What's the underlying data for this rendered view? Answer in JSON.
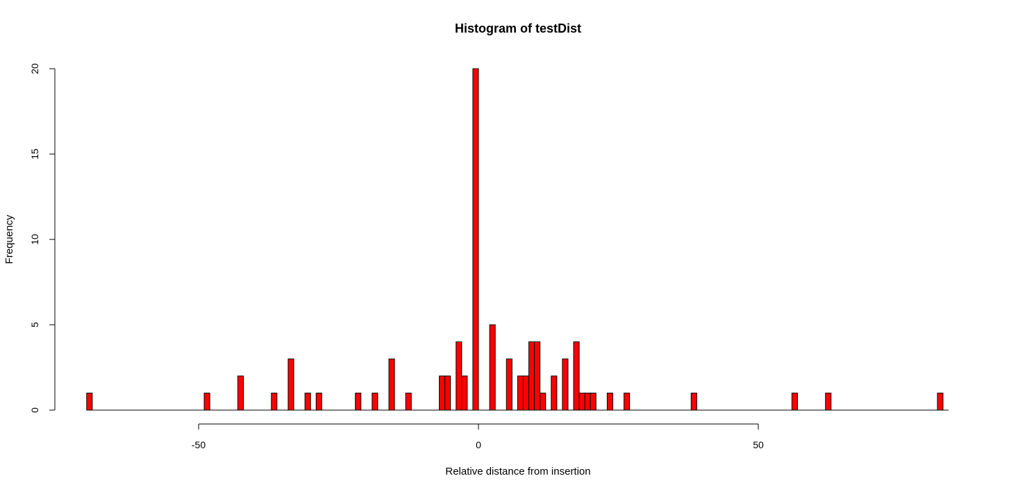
{
  "chart_data": {
    "type": "bar",
    "title": "Histogram of testDist",
    "xlabel": "Relative distance from insertion",
    "ylabel": "Frequency",
    "bar_color": "#ff0000",
    "border_color": "#000000",
    "bin_width": 1,
    "xlim": [
      -70,
      84
    ],
    "ylim": [
      0,
      20
    ],
    "x_ticks": [
      -50,
      0,
      50
    ],
    "y_ticks": [
      0,
      5,
      10,
      15,
      20
    ],
    "grid": false,
    "bins": [
      {
        "x": -70,
        "count": 1
      },
      {
        "x": -49,
        "count": 1
      },
      {
        "x": -43,
        "count": 2
      },
      {
        "x": -37,
        "count": 1
      },
      {
        "x": -34,
        "count": 3
      },
      {
        "x": -31,
        "count": 1
      },
      {
        "x": -29,
        "count": 1
      },
      {
        "x": -22,
        "count": 1
      },
      {
        "x": -19,
        "count": 1
      },
      {
        "x": -16,
        "count": 3
      },
      {
        "x": -13,
        "count": 1
      },
      {
        "x": -7,
        "count": 2
      },
      {
        "x": -6,
        "count": 2
      },
      {
        "x": -4,
        "count": 4
      },
      {
        "x": -3,
        "count": 2
      },
      {
        "x": -1,
        "count": 20
      },
      {
        "x": 2,
        "count": 5
      },
      {
        "x": 5,
        "count": 3
      },
      {
        "x": 7,
        "count": 2
      },
      {
        "x": 8,
        "count": 2
      },
      {
        "x": 9,
        "count": 4
      },
      {
        "x": 10,
        "count": 4
      },
      {
        "x": 11,
        "count": 1
      },
      {
        "x": 13,
        "count": 2
      },
      {
        "x": 15,
        "count": 3
      },
      {
        "x": 17,
        "count": 4
      },
      {
        "x": 18,
        "count": 1
      },
      {
        "x": 19,
        "count": 1
      },
      {
        "x": 20,
        "count": 1
      },
      {
        "x": 23,
        "count": 1
      },
      {
        "x": 26,
        "count": 1
      },
      {
        "x": 38,
        "count": 1
      },
      {
        "x": 56,
        "count": 1
      },
      {
        "x": 62,
        "count": 1
      },
      {
        "x": 82,
        "count": 1
      }
    ]
  }
}
